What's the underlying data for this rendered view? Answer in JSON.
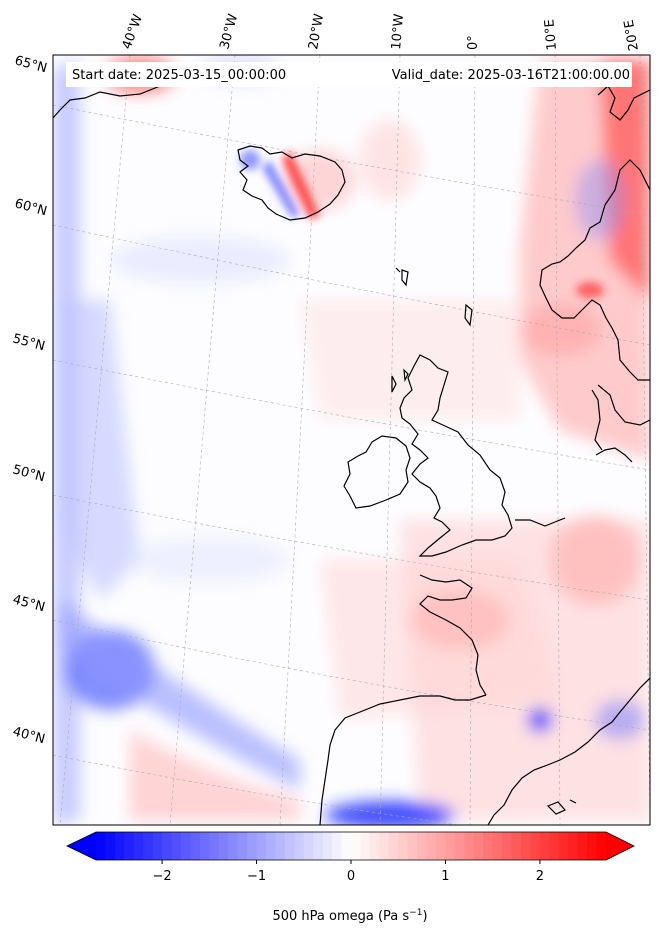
{
  "map": {
    "start_label": "Start date: 2025-03-15_00:00:00",
    "valid_label": "Valid_date: 2025-03-16T21:00:00.00",
    "lon_labels": [
      "40°W",
      "30°W",
      "20°W",
      "10°W",
      "0°",
      "10°E",
      "20°E"
    ],
    "lat_labels": [
      "65°N",
      "60°N",
      "55°N",
      "50°N",
      "45°N",
      "40°N"
    ],
    "colorbar": {
      "label": "500 hPa omega (Pa s",
      "label_sup": "−1",
      "label_close": ")",
      "ticks": [
        "−2",
        "−1",
        "0",
        "1",
        "2"
      ],
      "range": [
        -2.7,
        2.7
      ],
      "extend": "both",
      "colormap": "bwr",
      "color_low": "#0000ff",
      "color_mid": "#ffffff",
      "color_high": "#ff0000"
    },
    "coastline_color": "#000000"
  }
}
